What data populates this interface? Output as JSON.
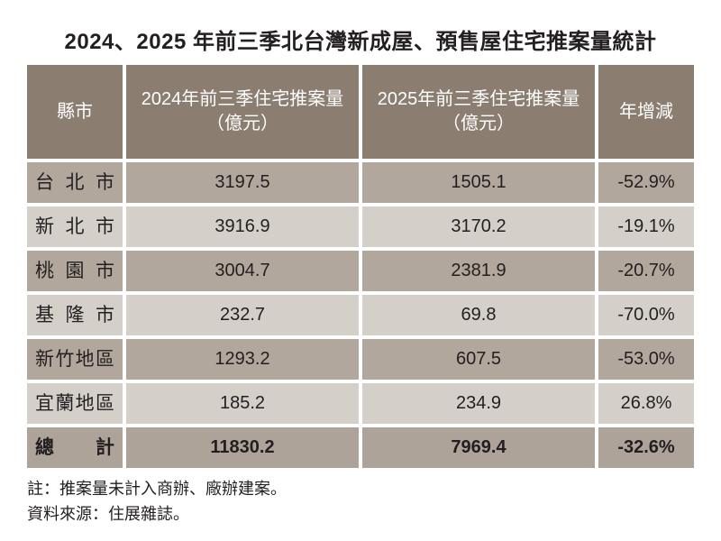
{
  "title": "2024、2025 年前三季北台灣新成屋、預售屋住宅推案量統計",
  "table": {
    "headers": {
      "city": "縣市",
      "y2024": "2024年前三季住宅推案量\n（億元）",
      "y2025": "2025年前三季住宅推案量\n（億元）",
      "yoy": "年增減"
    },
    "rows": [
      {
        "city": "台北市",
        "v2024": "3197.5",
        "v2025": "1505.1",
        "yoy": "-52.9%"
      },
      {
        "city": "新北市",
        "v2024": "3916.9",
        "v2025": "3170.2",
        "yoy": "-19.1%"
      },
      {
        "city": "桃園市",
        "v2024": "3004.7",
        "v2025": "2381.9",
        "yoy": "-20.7%"
      },
      {
        "city": "基隆市",
        "v2024": "232.7",
        "v2025": "69.8",
        "yoy": "-70.0%"
      },
      {
        "city": "新竹地區",
        "v2024": "1293.2",
        "v2025": "607.5",
        "yoy": "-53.0%"
      },
      {
        "city": "宜蘭地區",
        "v2024": "185.2",
        "v2025": "234.9",
        "yoy": "26.8%"
      }
    ],
    "total": {
      "city": "總計",
      "v2024": "11830.2",
      "v2025": "7969.4",
      "yoy": "-32.6%"
    }
  },
  "notes": [
    "註：推案量未計入商辦、廠辦建案。",
    "資料來源：住展雜誌。"
  ],
  "colors": {
    "header_bg": "#8b7e71",
    "header_text": "#ffffff",
    "row_dark_bg": "#b2a79d",
    "row_light_bg": "#d4cfc8",
    "total_bg": "#aea399",
    "text": "#231f20",
    "page_bg": "#ffffff"
  },
  "chart_data": {
    "type": "table",
    "title": "2024、2025 年前三季北台灣新成屋、預售屋住宅推案量統計",
    "columns": [
      "縣市",
      "2024年前三季住宅推案量（億元）",
      "2025年前三季住宅推案量（億元）",
      "年增減"
    ],
    "rows": [
      [
        "台北市",
        3197.5,
        1505.1,
        "-52.9%"
      ],
      [
        "新北市",
        3916.9,
        3170.2,
        "-19.1%"
      ],
      [
        "桃園市",
        3004.7,
        2381.9,
        "-20.7%"
      ],
      [
        "基隆市",
        232.7,
        69.8,
        "-70.0%"
      ],
      [
        "新竹地區",
        1293.2,
        607.5,
        "-53.0%"
      ],
      [
        "宜蘭地區",
        185.2,
        234.9,
        "26.8%"
      ],
      [
        "總計",
        11830.2,
        7969.4,
        "-32.6%"
      ]
    ],
    "notes": [
      "註：推案量未計入商辦、廠辦建案。",
      "資料來源：住展雜誌。"
    ]
  }
}
